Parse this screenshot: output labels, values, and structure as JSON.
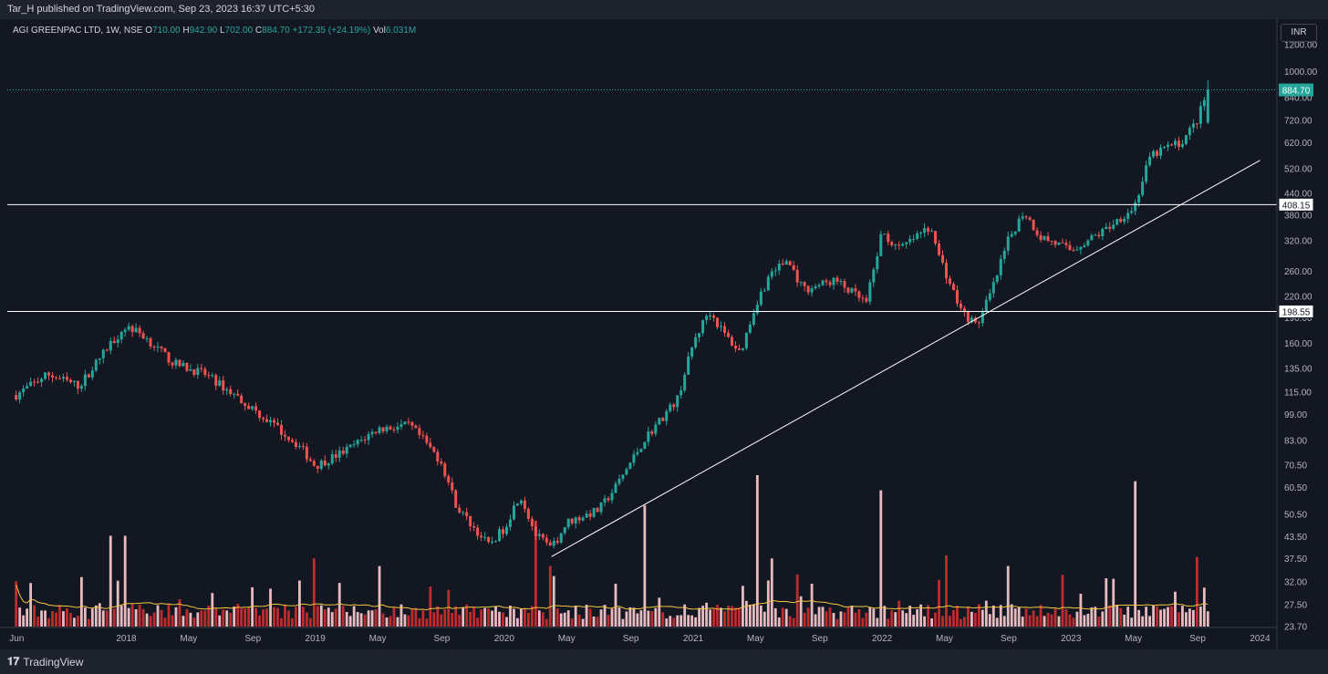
{
  "header": {
    "published": "Tar_H published on TradingView.com, Sep 23, 2023 16:37 UTC+5:30"
  },
  "legend": {
    "symbol": "AGI GREENPAC LTD, 1W, NSE",
    "o_label": "O",
    "o_value": "710.00",
    "h_label": "H",
    "h_value": "942.90",
    "l_label": "L",
    "l_value": "702.00",
    "c_label": "C",
    "c_value": "884.70",
    "change": "+172.35 (+24.19%)",
    "vol_label": "Vol",
    "vol_value": "6.031M"
  },
  "currency": "INR",
  "footer": {
    "brand": "TradingView"
  },
  "colors": {
    "bg": "#131722",
    "up": "#26a69a",
    "down": "#ef5350",
    "vol_up": "#ffcdd2",
    "vol_down": "#d32f2f",
    "ma": "#f5c542",
    "line": "#ffffff"
  },
  "chart_data": {
    "type": "candlestick",
    "title": "",
    "y_scale": "log",
    "y_ticks": [
      "1200.00",
      "1000.00",
      "840.00",
      "720.00",
      "620.00",
      "520.00",
      "440.00",
      "380.00",
      "320.00",
      "260.00",
      "220.00",
      "190.00",
      "160.00",
      "135.00",
      "115.00",
      "99.00",
      "83.00",
      "70.50",
      "60.50",
      "50.50",
      "43.50",
      "37.50",
      "32.00",
      "27.50",
      "23.70"
    ],
    "x_ticks": [
      "Jun",
      "2018",
      "May",
      "Sep",
      "2019",
      "May",
      "Sep",
      "2020",
      "May",
      "Sep",
      "2021",
      "May",
      "Sep",
      "2022",
      "May",
      "Sep",
      "2023",
      "May",
      "Sep",
      "2024"
    ],
    "horizontal_levels": [
      {
        "value": 408.15,
        "label": "408.15"
      },
      {
        "value": 198.55,
        "label": "198.55"
      }
    ],
    "last_price": {
      "value": 884.7,
      "label": "884.70"
    },
    "trendline": {
      "from": {
        "date": "2020-04",
        "value": 38
      },
      "to": {
        "date": "2024-01",
        "value": 550
      }
    },
    "series": [
      {
        "name": "Price",
        "points": [
          [
            "2017-06",
            113
          ],
          [
            "2017-08",
            130
          ],
          [
            "2017-10",
            120
          ],
          [
            "2017-12",
            160
          ],
          [
            "2018-01",
            180
          ],
          [
            "2018-02",
            170
          ],
          [
            "2018-04",
            140
          ],
          [
            "2018-06",
            130
          ],
          [
            "2018-08",
            112
          ],
          [
            "2018-10",
            95
          ],
          [
            "2018-12",
            80
          ],
          [
            "2019-01",
            70
          ],
          [
            "2019-03",
            78
          ],
          [
            "2019-05",
            90
          ],
          [
            "2019-07",
            92
          ],
          [
            "2019-08",
            82
          ],
          [
            "2019-09",
            72
          ],
          [
            "2019-10",
            53
          ],
          [
            "2019-12",
            41
          ],
          [
            "2020-01",
            46
          ],
          [
            "2020-02",
            58
          ],
          [
            "2020-03",
            44
          ],
          [
            "2020-04",
            40
          ],
          [
            "2020-05",
            48
          ],
          [
            "2020-07",
            52
          ],
          [
            "2020-08",
            60
          ],
          [
            "2020-10",
            85
          ],
          [
            "2020-12",
            110
          ],
          [
            "2021-01",
            160
          ],
          [
            "2021-02",
            200
          ],
          [
            "2021-03",
            170
          ],
          [
            "2021-04",
            150
          ],
          [
            "2021-05",
            210
          ],
          [
            "2021-06",
            260
          ],
          [
            "2021-07",
            280
          ],
          [
            "2021-08",
            230
          ],
          [
            "2021-10",
            245
          ],
          [
            "2021-12",
            210
          ],
          [
            "2022-01",
            340
          ],
          [
            "2022-02",
            300
          ],
          [
            "2022-04",
            350
          ],
          [
            "2022-05",
            260
          ],
          [
            "2022-06",
            200
          ],
          [
            "2022-07",
            180
          ],
          [
            "2022-08",
            230
          ],
          [
            "2022-09",
            320
          ],
          [
            "2022-10",
            390
          ],
          [
            "2022-11",
            330
          ],
          [
            "2023-01",
            300
          ],
          [
            "2023-03",
            340
          ],
          [
            "2023-04",
            370
          ],
          [
            "2023-05",
            400
          ],
          [
            "2023-06",
            560
          ],
          [
            "2023-07",
            600
          ],
          [
            "2023-08",
            620
          ],
          [
            "2023-09",
            720
          ],
          [
            "2023-09-22",
            884.7
          ]
        ]
      },
      {
        "name": "Volume",
        "peaks": [
          [
            "2017-06",
            0.3
          ],
          [
            "2017-12",
            0.6
          ],
          [
            "2018-01",
            0.6
          ],
          [
            "2019-01",
            0.45
          ],
          [
            "2019-05",
            0.4
          ],
          [
            "2020-03",
            0.7
          ],
          [
            "2020-04",
            0.4
          ],
          [
            "2020-10",
            0.8
          ],
          [
            "2021-05",
            1.0
          ],
          [
            "2021-06",
            0.45
          ],
          [
            "2022-01",
            0.9
          ],
          [
            "2022-05",
            0.47
          ],
          [
            "2022-09",
            0.4
          ],
          [
            "2023-05",
            0.96
          ],
          [
            "2023-09",
            0.46
          ]
        ]
      }
    ]
  }
}
